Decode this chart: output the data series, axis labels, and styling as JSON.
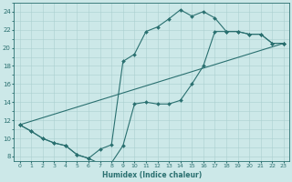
{
  "xlabel": "Humidex (Indice chaleur)",
  "bg_color": "#cce8e8",
  "grid_color": "#aacfcf",
  "line_color": "#2a7070",
  "xlim": [
    -0.5,
    23.5
  ],
  "ylim": [
    7.5,
    25.0
  ],
  "xticks": [
    0,
    1,
    2,
    3,
    4,
    5,
    6,
    7,
    8,
    9,
    10,
    11,
    12,
    13,
    14,
    15,
    16,
    17,
    18,
    19,
    20,
    21,
    22,
    23
  ],
  "yticks": [
    8,
    10,
    12,
    14,
    16,
    18,
    20,
    22,
    24
  ],
  "line1_x": [
    0,
    1,
    2,
    3,
    4,
    5,
    6,
    7,
    8,
    9,
    10,
    11,
    12,
    13,
    14,
    15,
    16,
    17,
    18,
    19,
    20,
    21,
    22,
    23
  ],
  "line1_y": [
    11.5,
    10.8,
    10.0,
    9.5,
    9.2,
    8.2,
    7.8,
    8.8,
    9.3,
    18.5,
    19.3,
    21.8,
    22.3,
    23.2,
    24.2,
    23.5,
    24.0,
    23.3,
    21.8,
    21.8,
    21.5,
    21.5,
    20.5,
    20.5
  ],
  "line2_x": [
    0,
    1,
    2,
    3,
    4,
    5,
    6,
    7,
    8,
    9,
    10,
    11,
    12,
    13,
    14,
    15,
    16,
    17,
    18,
    19,
    20,
    21,
    22,
    23
  ],
  "line2_y": [
    11.5,
    10.8,
    10.0,
    9.5,
    9.2,
    8.2,
    7.8,
    7.2,
    7.3,
    9.2,
    13.8,
    14.0,
    13.8,
    13.8,
    14.2,
    16.0,
    18.0,
    21.8,
    21.8,
    21.8,
    21.5,
    21.5,
    20.5,
    20.5
  ],
  "line3_x": [
    0,
    23
  ],
  "line3_y": [
    11.5,
    20.5
  ]
}
